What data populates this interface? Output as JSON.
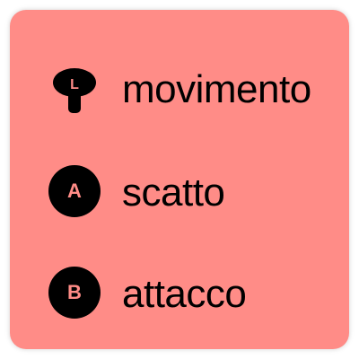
{
  "colors": {
    "card_background": "#ff8c87",
    "icon_fill": "#000000",
    "icon_letter": "#ff8c87",
    "text": "#000000"
  },
  "controls": [
    {
      "icon": "left-stick-icon",
      "glyph": "L",
      "label": "movimento"
    },
    {
      "icon": "a-button-icon",
      "glyph": "A",
      "label": "scatto"
    },
    {
      "icon": "b-button-icon",
      "glyph": "B",
      "label": "attacco"
    }
  ]
}
